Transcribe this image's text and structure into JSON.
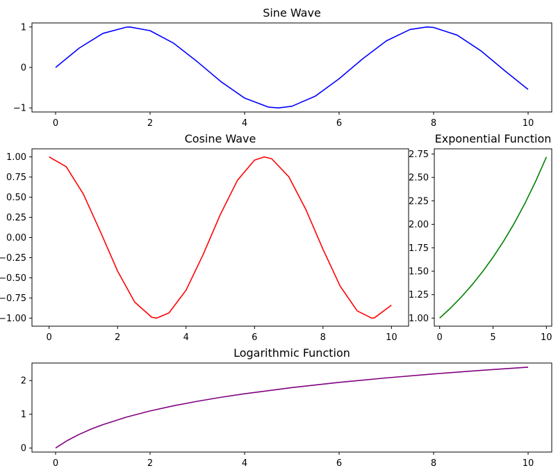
{
  "chart_data": [
    {
      "type": "line",
      "title": "Sine Wave",
      "xlim": [
        -0.5,
        10.5
      ],
      "ylim": [
        -1.1,
        1.1
      ],
      "xticks": [
        0,
        2,
        4,
        6,
        8,
        10
      ],
      "xtick_labels": [
        "0",
        "2",
        "4",
        "6",
        "8",
        "10"
      ],
      "yticks": [
        -1,
        0,
        1
      ],
      "ytick_labels": [
        "−1",
        "0",
        "1"
      ],
      "grid": false,
      "series": [
        {
          "color": "#0000ff",
          "x": [
            0,
            0.5,
            1,
            1.5,
            1.571,
            2,
            2.5,
            3,
            3.5,
            4,
            4.5,
            4.712,
            5,
            5.5,
            6,
            6.5,
            7,
            7.5,
            7.854,
            8,
            8.5,
            9,
            9.5,
            10
          ],
          "y": [
            0,
            0.479,
            0.841,
            0.997,
            1,
            0.909,
            0.598,
            0.141,
            -0.351,
            -0.757,
            -0.978,
            -1,
            -0.959,
            -0.706,
            -0.279,
            0.215,
            0.657,
            0.938,
            1,
            0.989,
            0.798,
            0.412,
            -0.075,
            -0.544
          ]
        }
      ]
    },
    {
      "type": "line",
      "title": "Cosine Wave",
      "xlim": [
        -0.5,
        10.5
      ],
      "ylim": [
        -1.1,
        1.1
      ],
      "xticks": [
        0,
        2,
        4,
        6,
        8,
        10
      ],
      "xtick_labels": [
        "0",
        "2",
        "4",
        "6",
        "8",
        "10"
      ],
      "yticks": [
        1,
        0.75,
        0.5,
        0.25,
        0,
        -0.25,
        -0.5,
        -0.75,
        -1
      ],
      "ytick_labels": [
        "1.00",
        "0.75",
        "0.50",
        "0.25",
        "0.00",
        "−0.25",
        "−0.50",
        "−0.75",
        "−1.00"
      ],
      "grid": false,
      "series": [
        {
          "color": "#ff0000",
          "x": [
            0,
            0.5,
            1,
            1.5,
            2,
            2.5,
            3,
            3.142,
            3.5,
            4,
            4.5,
            5,
            5.5,
            6,
            6.283,
            6.5,
            7,
            7.5,
            8,
            8.5,
            9,
            9.425,
            9.5,
            10
          ],
          "y": [
            1,
            0.878,
            0.54,
            0.071,
            -0.416,
            -0.801,
            -0.99,
            -1,
            -0.936,
            -0.654,
            -0.211,
            0.284,
            0.709,
            0.96,
            1,
            0.977,
            0.754,
            0.347,
            -0.146,
            -0.602,
            -0.911,
            -1,
            -0.997,
            -0.839
          ]
        }
      ]
    },
    {
      "type": "line",
      "title": "Exponential Function",
      "xlim": [
        -0.5,
        10.5
      ],
      "ylim": [
        0.914,
        2.805
      ],
      "xticks": [
        0,
        5,
        10
      ],
      "xtick_labels": [
        "0",
        "5",
        "10"
      ],
      "yticks": [
        1,
        1.25,
        1.5,
        1.75,
        2,
        2.25,
        2.5,
        2.75
      ],
      "ytick_labels": [
        "1.00",
        "1.25",
        "1.50",
        "1.75",
        "2.00",
        "2.25",
        "2.50",
        "2.75"
      ],
      "grid": false,
      "series": [
        {
          "color": "#008000",
          "x": [
            0,
            1,
            2,
            3,
            4,
            5,
            6,
            7,
            8,
            9,
            10
          ],
          "y": [
            1,
            1.105,
            1.221,
            1.35,
            1.492,
            1.649,
            1.822,
            2.014,
            2.226,
            2.46,
            2.718
          ]
        }
      ]
    },
    {
      "type": "line",
      "title": "Logarithmic Function",
      "xlim": [
        -0.5,
        10.5
      ],
      "ylim": [
        -0.12,
        2.52
      ],
      "xticks": [
        0,
        2,
        4,
        6,
        8,
        10
      ],
      "xtick_labels": [
        "0",
        "2",
        "4",
        "6",
        "8",
        "10"
      ],
      "yticks": [
        0,
        1,
        2
      ],
      "ytick_labels": [
        "0",
        "1",
        "2"
      ],
      "grid": false,
      "series": [
        {
          "color": "#800080",
          "x": [
            0,
            0.25,
            0.5,
            0.75,
            1,
            1.5,
            2,
            2.5,
            3,
            3.5,
            4,
            5,
            6,
            7,
            8,
            9,
            10
          ],
          "y": [
            0,
            0.223,
            0.405,
            0.56,
            0.693,
            0.916,
            1.099,
            1.253,
            1.386,
            1.504,
            1.609,
            1.792,
            1.946,
            2.079,
            2.197,
            2.303,
            2.398
          ]
        }
      ]
    }
  ]
}
